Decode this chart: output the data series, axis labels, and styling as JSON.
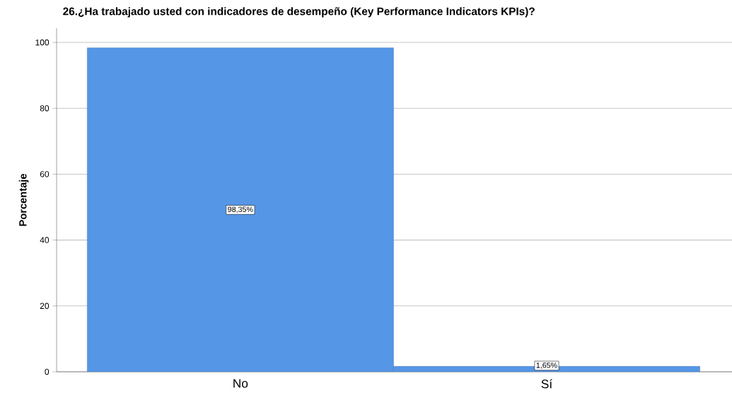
{
  "chart_data": {
    "type": "bar",
    "title": "26.¿Ha trabajado usted con indicadores de desempeño (Key Performance Indicators KPIs)?",
    "ylabel": "Porcentaje",
    "categories": [
      "No",
      "Sí"
    ],
    "values": [
      98.35,
      1.65
    ],
    "value_labels": [
      "98,35%",
      "1,65%"
    ],
    "color": "#5596e6",
    "ylim": [
      0,
      104.3
    ],
    "yticks": [
      0,
      20,
      40,
      60,
      80,
      100
    ],
    "grid": "y"
  }
}
